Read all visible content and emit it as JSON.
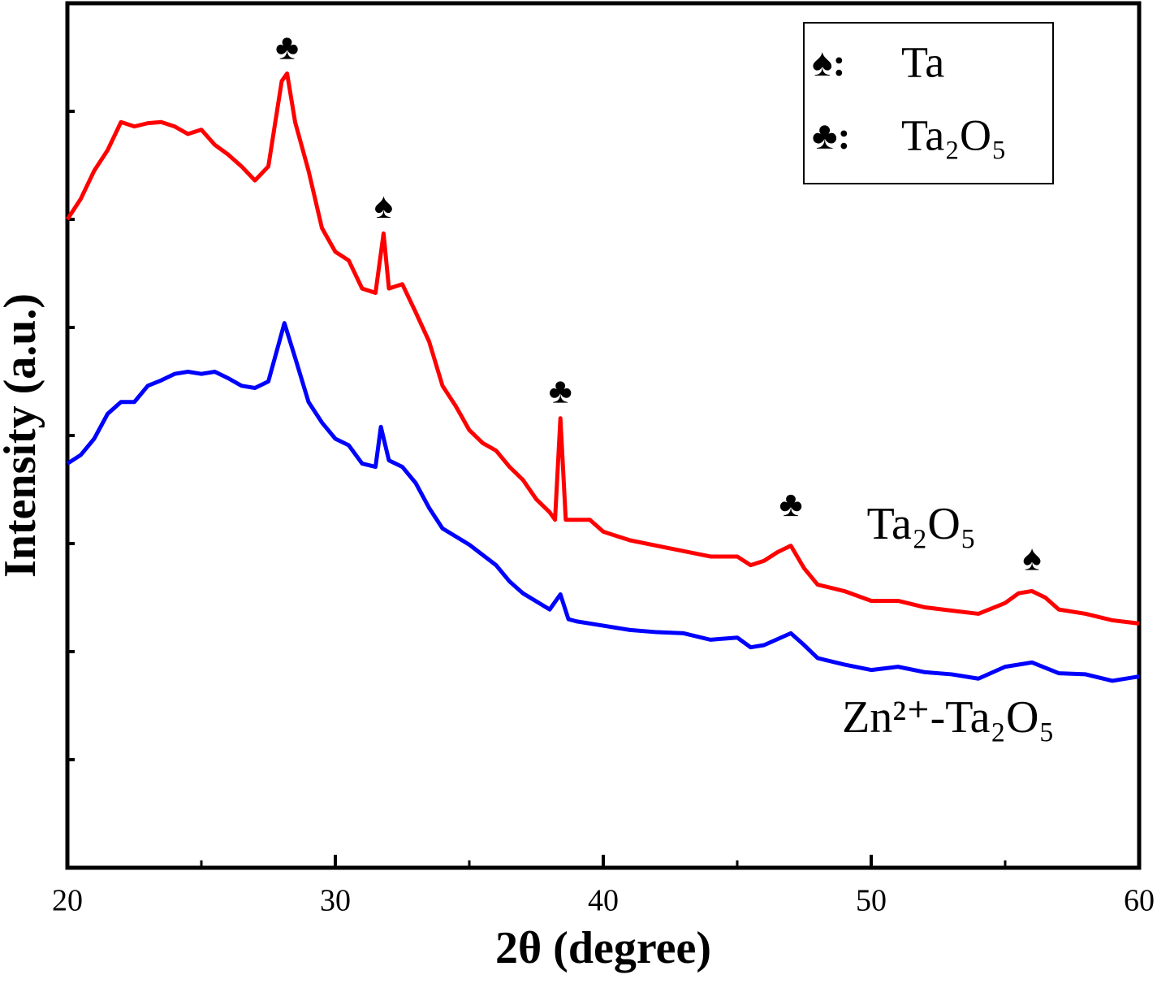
{
  "chart_data": {
    "type": "line",
    "xlabel": "2θ (degree)",
    "ylabel": "Intensity (a.u.)",
    "xlim": [
      20,
      60
    ],
    "xticks": [
      20,
      30,
      40,
      50,
      60
    ],
    "xminor": [
      25,
      35,
      45,
      55
    ],
    "ylim": [
      0,
      8
    ],
    "yticks": [
      1,
      2,
      3,
      4,
      5,
      6,
      7
    ],
    "series": [
      {
        "name": "Ta₂O₅",
        "color": "#ff0000",
        "x": [
          20,
          20.5,
          21,
          21.5,
          22,
          22.5,
          23,
          23.5,
          24,
          24.5,
          25,
          25.5,
          26,
          26.5,
          27,
          27.5,
          28,
          28.2,
          28.5,
          29,
          29.5,
          30,
          30.5,
          31,
          31.5,
          31.8,
          32,
          32.5,
          33,
          33.5,
          34,
          34.5,
          35,
          35.5,
          36,
          36.5,
          37,
          37.5,
          38,
          38.2,
          38.4,
          38.6,
          39,
          39.5,
          40,
          41,
          42,
          43,
          44,
          45,
          45.5,
          46,
          46.5,
          47,
          47.5,
          48,
          49,
          50,
          51,
          52,
          53,
          54,
          55,
          55.5,
          56,
          56.5,
          57,
          58,
          59,
          60
        ],
        "values": [
          6.0,
          6.19,
          6.45,
          6.64,
          6.9,
          6.86,
          6.89,
          6.9,
          6.86,
          6.79,
          6.83,
          6.69,
          6.6,
          6.49,
          6.36,
          6.49,
          7.28,
          7.35,
          6.9,
          6.45,
          5.92,
          5.7,
          5.62,
          5.36,
          5.32,
          5.87,
          5.36,
          5.4,
          5.14,
          4.87,
          4.46,
          4.27,
          4.05,
          3.93,
          3.86,
          3.71,
          3.59,
          3.41,
          3.29,
          3.22,
          4.16,
          3.22,
          3.22,
          3.22,
          3.11,
          3.03,
          2.98,
          2.93,
          2.88,
          2.88,
          2.8,
          2.84,
          2.92,
          2.98,
          2.77,
          2.62,
          2.56,
          2.47,
          2.47,
          2.41,
          2.38,
          2.35,
          2.45,
          2.54,
          2.56,
          2.5,
          2.39,
          2.35,
          2.29,
          2.26
        ]
      },
      {
        "name": "Zn²⁺-Ta₂O₅",
        "color": "#0000ff",
        "x": [
          20,
          20.5,
          21,
          21.5,
          22,
          22.5,
          23,
          23.5,
          24,
          24.5,
          25,
          25.5,
          26,
          26.5,
          27,
          27.5,
          28,
          28.1,
          28.5,
          29,
          29.5,
          30,
          30.5,
          31,
          31.5,
          31.7,
          32,
          32.5,
          33,
          33.5,
          34,
          35,
          36,
          36.5,
          37,
          38,
          38.4,
          38.7,
          39,
          40,
          41,
          42,
          43,
          44,
          45,
          45.5,
          46,
          47,
          47.5,
          48,
          49,
          50,
          51,
          52,
          53,
          54,
          55,
          56,
          57,
          58,
          59,
          60
        ],
        "values": [
          3.74,
          3.82,
          3.97,
          4.2,
          4.31,
          4.31,
          4.46,
          4.51,
          4.57,
          4.59,
          4.57,
          4.59,
          4.53,
          4.46,
          4.44,
          4.5,
          4.95,
          5.04,
          4.72,
          4.31,
          4.12,
          3.97,
          3.91,
          3.74,
          3.71,
          4.08,
          3.77,
          3.71,
          3.56,
          3.33,
          3.14,
          2.99,
          2.8,
          2.65,
          2.54,
          2.39,
          2.53,
          2.3,
          2.28,
          2.24,
          2.2,
          2.18,
          2.17,
          2.11,
          2.13,
          2.04,
          2.06,
          2.17,
          2.06,
          1.94,
          1.88,
          1.83,
          1.86,
          1.81,
          1.79,
          1.75,
          1.86,
          1.9,
          1.8,
          1.79,
          1.73,
          1.77
        ]
      }
    ],
    "annotations": [
      {
        "text": "♣",
        "x": 28.2,
        "y": 7.56
      },
      {
        "text": "♠",
        "x": 31.8,
        "y": 6.09
      },
      {
        "text": "♣",
        "x": 38.4,
        "y": 4.38
      },
      {
        "text": "♣",
        "x": 47.0,
        "y": 3.33
      },
      {
        "text": "♠",
        "x": 56.0,
        "y": 2.83
      }
    ],
    "legend": [
      {
        "marker": "♠:",
        "label": "Ta"
      },
      {
        "marker": "♣:",
        "label": "Ta₂O₅"
      }
    ]
  }
}
